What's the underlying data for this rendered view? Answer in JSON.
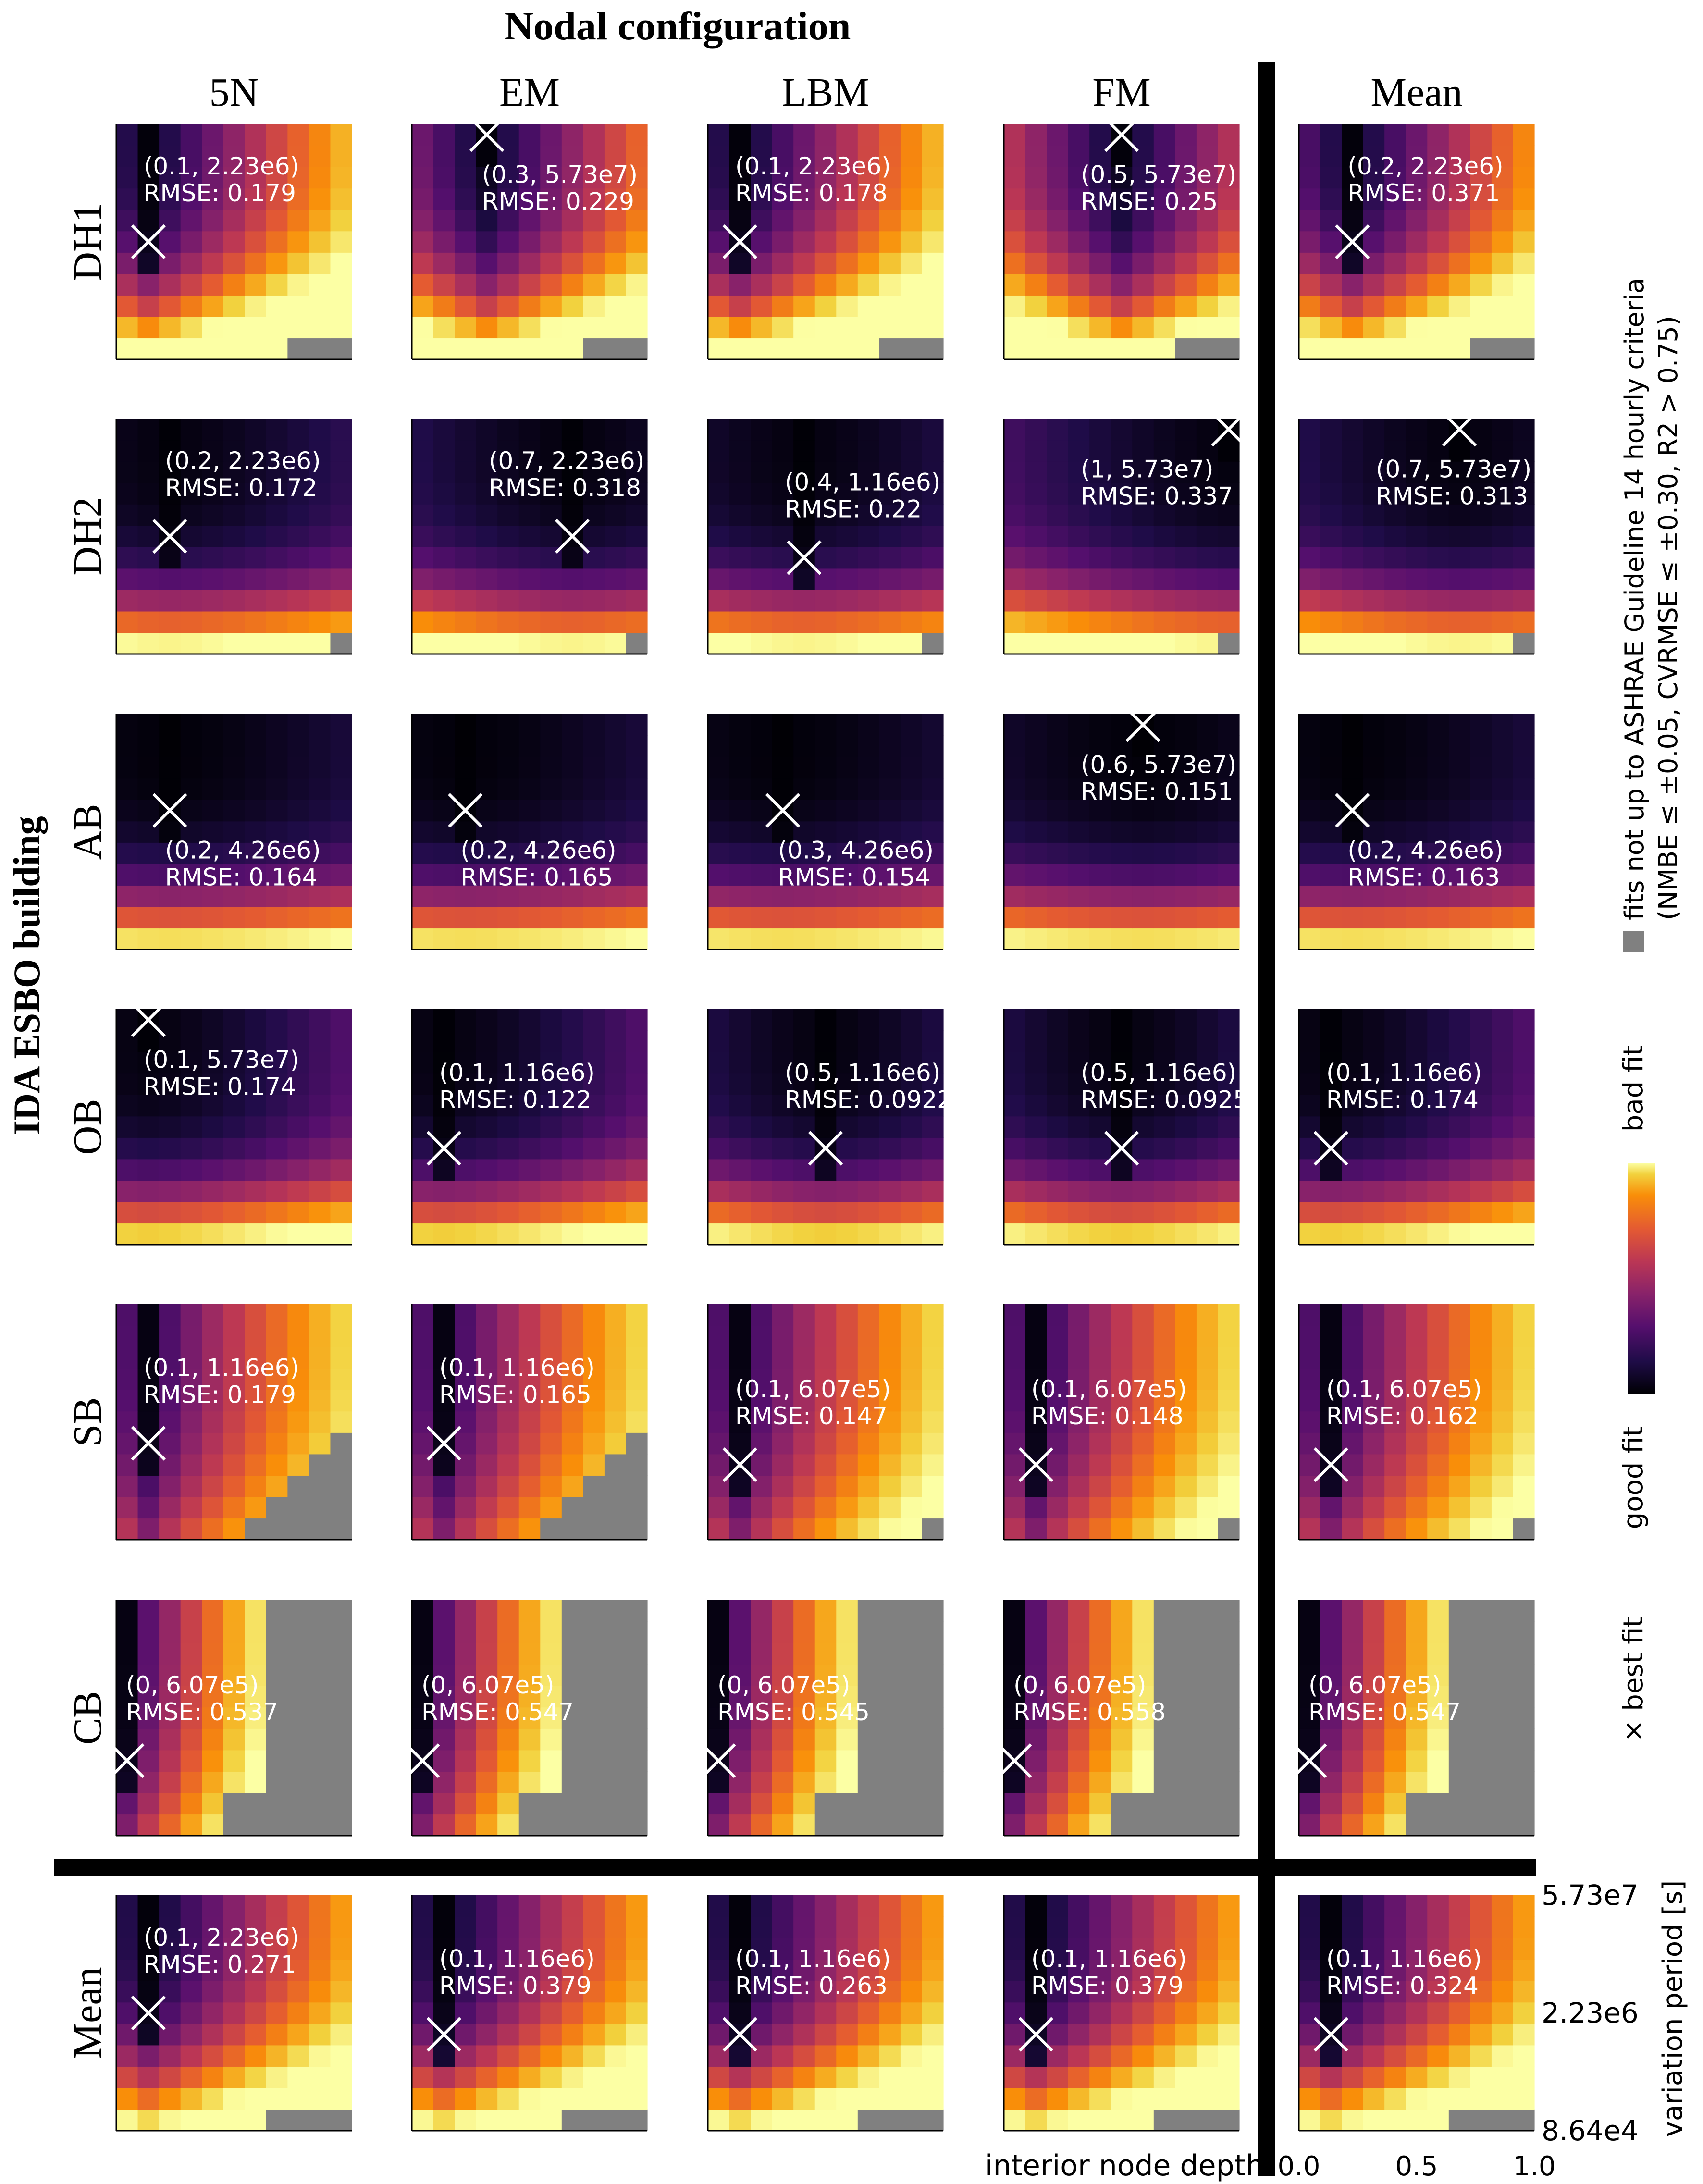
{
  "chart_data": {
    "type": "heatmap",
    "title": "Nodal configuration",
    "row_group_label": "IDA ESBO building",
    "columns": [
      "5N",
      "EM",
      "LBM",
      "FM",
      "Mean"
    ],
    "rows": [
      "DH1",
      "DH2",
      "AB",
      "OB",
      "SB",
      "CB",
      "Mean"
    ],
    "xlabel": "interior node depth",
    "ylabel": "variation period [s]",
    "x_ticks": [
      "0.0",
      "0.5",
      "1.0"
    ],
    "y_ticks": [
      "5.73e7",
      "2.23e6",
      "8.64e4"
    ],
    "xlim": [
      0,
      1
    ],
    "ylim": [
      86400,
      57300000
    ],
    "colorbar": {
      "colormap": "inferno",
      "low_label": "good fit",
      "high_label": "bad fit"
    },
    "legend": {
      "best_fit": "× best fit",
      "gray_line1": "fits not up to ASHRAE Guideline 14 hourly criteria",
      "gray_line2": "(NMBE ≤ ±0.05, CVRMSE ≤ ±0.30, R2 > 0.75)"
    },
    "best_fits": [
      [
        {
          "x": 0.1,
          "period": "2.23e6",
          "rmse": 0.179,
          "label1": "(0.1, 2.23e6)",
          "label2": "RMSE: 0.179"
        },
        {
          "x": 0.3,
          "period": "5.73e7",
          "rmse": 0.229,
          "label1": "(0.3, 5.73e7)",
          "label2": "RMSE: 0.229"
        },
        {
          "x": 0.1,
          "period": "2.23e6",
          "rmse": 0.178,
          "label1": "(0.1, 2.23e6)",
          "label2": "RMSE: 0.178"
        },
        {
          "x": 0.5,
          "period": "5.73e7",
          "rmse": 0.25,
          "label1": "(0.5, 5.73e7)",
          "label2": "RMSE: 0.25"
        },
        {
          "x": 0.2,
          "period": "2.23e6",
          "rmse": 0.371,
          "label1": "(0.2, 2.23e6)",
          "label2": "RMSE: 0.371"
        }
      ],
      [
        {
          "x": 0.2,
          "period": "2.23e6",
          "rmse": 0.172,
          "label1": "(0.2, 2.23e6)",
          "label2": "RMSE: 0.172"
        },
        {
          "x": 0.7,
          "period": "2.23e6",
          "rmse": 0.318,
          "label1": "(0.7, 2.23e6)",
          "label2": "RMSE: 0.318"
        },
        {
          "x": 0.4,
          "period": "1.16e6",
          "rmse": 0.22,
          "label1": "(0.4, 1.16e6)",
          "label2": "RMSE: 0.22"
        },
        {
          "x": 1.0,
          "period": "5.73e7",
          "rmse": 0.337,
          "label1": "(1, 5.73e7)",
          "label2": "RMSE: 0.337"
        },
        {
          "x": 0.7,
          "period": "5.73e7",
          "rmse": 0.313,
          "label1": "(0.7, 5.73e7)",
          "label2": "RMSE: 0.313"
        }
      ],
      [
        {
          "x": 0.2,
          "period": "4.26e6",
          "rmse": 0.164,
          "label1": "(0.2, 4.26e6)",
          "label2": "RMSE: 0.164"
        },
        {
          "x": 0.2,
          "period": "4.26e6",
          "rmse": 0.165,
          "label1": "(0.2, 4.26e6)",
          "label2": "RMSE: 0.165"
        },
        {
          "x": 0.3,
          "period": "4.26e6",
          "rmse": 0.154,
          "label1": "(0.3, 4.26e6)",
          "label2": "RMSE: 0.154"
        },
        {
          "x": 0.6,
          "period": "5.73e7",
          "rmse": 0.151,
          "label1": "(0.6, 5.73e7)",
          "label2": "RMSE: 0.151"
        },
        {
          "x": 0.2,
          "period": "4.26e6",
          "rmse": 0.163,
          "label1": "(0.2, 4.26e6)",
          "label2": "RMSE: 0.163"
        }
      ],
      [
        {
          "x": 0.1,
          "period": "5.73e7",
          "rmse": 0.174,
          "label1": "(0.1, 5.73e7)",
          "label2": "RMSE: 0.174"
        },
        {
          "x": 0.1,
          "period": "1.16e6",
          "rmse": 0.122,
          "label1": "(0.1, 1.16e6)",
          "label2": "RMSE: 0.122"
        },
        {
          "x": 0.5,
          "period": "1.16e6",
          "rmse": 0.0922,
          "label1": "(0.5, 1.16e6)",
          "label2": "RMSE: 0.0922"
        },
        {
          "x": 0.5,
          "period": "1.16e6",
          "rmse": 0.0925,
          "label1": "(0.5, 1.16e6)",
          "label2": "RMSE: 0.0925"
        },
        {
          "x": 0.1,
          "period": "1.16e6",
          "rmse": 0.174,
          "label1": "(0.1, 1.16e6)",
          "label2": "RMSE: 0.174"
        }
      ],
      [
        {
          "x": 0.1,
          "period": "1.16e6",
          "rmse": 0.179,
          "label1": "(0.1, 1.16e6)",
          "label2": "RMSE: 0.179"
        },
        {
          "x": 0.1,
          "period": "1.16e6",
          "rmse": 0.165,
          "label1": "(0.1, 1.16e6)",
          "label2": "RMSE: 0.165"
        },
        {
          "x": 0.1,
          "period": "6.07e5",
          "rmse": 0.147,
          "label1": "(0.1, 6.07e5)",
          "label2": "RMSE: 0.147"
        },
        {
          "x": 0.1,
          "period": "6.07e5",
          "rmse": 0.148,
          "label1": "(0.1, 6.07e5)",
          "label2": "RMSE: 0.148"
        },
        {
          "x": 0.1,
          "period": "6.07e5",
          "rmse": 0.162,
          "label1": "(0.1, 6.07e5)",
          "label2": "RMSE: 0.162"
        }
      ],
      [
        {
          "x": 0.0,
          "period": "6.07e5",
          "rmse": 0.537,
          "label1": "(0, 6.07e5)",
          "label2": "RMSE: 0.537"
        },
        {
          "x": 0.0,
          "period": "6.07e5",
          "rmse": 0.547,
          "label1": "(0, 6.07e5)",
          "label2": "RMSE: 0.547"
        },
        {
          "x": 0.0,
          "period": "6.07e5",
          "rmse": 0.545,
          "label1": "(0, 6.07e5)",
          "label2": "RMSE: 0.545"
        },
        {
          "x": 0.0,
          "period": "6.07e5",
          "rmse": 0.558,
          "label1": "(0, 6.07e5)",
          "label2": "RMSE: 0.558"
        },
        {
          "x": 0.0,
          "period": "6.07e5",
          "rmse": 0.547,
          "label1": "(0, 6.07e5)",
          "label2": "RMSE: 0.547"
        }
      ],
      [
        {
          "x": 0.1,
          "period": "2.23e6",
          "rmse": 0.271,
          "label1": "(0.1, 2.23e6)",
          "label2": "RMSE: 0.271"
        },
        {
          "x": 0.1,
          "period": "1.16e6",
          "rmse": 0.379,
          "label1": "(0.1, 1.16e6)",
          "label2": "RMSE: 0.379"
        },
        {
          "x": 0.1,
          "period": "1.16e6",
          "rmse": 0.263,
          "label1": "(0.1, 1.16e6)",
          "label2": "RMSE: 0.263"
        },
        {
          "x": 0.1,
          "period": "1.16e6",
          "rmse": 0.379,
          "label1": "(0.1, 1.16e6)",
          "label2": "RMSE: 0.379"
        },
        {
          "x": 0.1,
          "period": "1.16e6",
          "rmse": 0.324,
          "label1": "(0.1, 1.16e6)",
          "label2": "RMSE: 0.324"
        }
      ]
    ]
  }
}
